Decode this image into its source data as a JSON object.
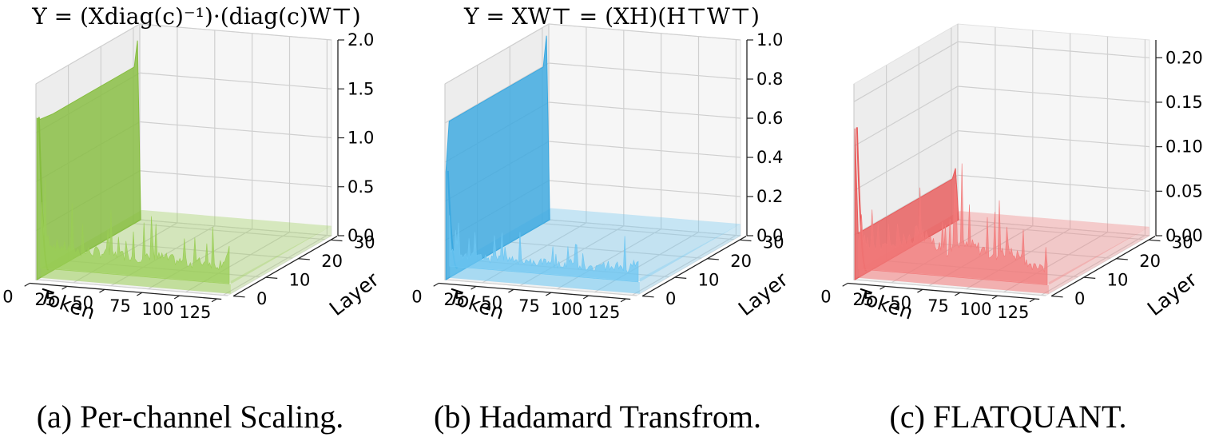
{
  "figure": {
    "panels": [
      {
        "formula": "Y = (Xdiag(c)⁻¹)·(diag(c)W⊤)",
        "caption": "(a) Per-channel Scaling.",
        "color": "#9acd55",
        "color_dark": "#86bd3f"
      },
      {
        "formula": "Y = XW⊤ = (XH)(H⊤W⊤)",
        "caption": "(b) Hadamard Transfrom.",
        "color": "#6cc6f2",
        "color_dark": "#3aa8e0"
      },
      {
        "formula": "",
        "caption": "(c) FLATQUANT.",
        "color": "#f27a7a",
        "color_dark": "#e85b5b"
      }
    ]
  },
  "chart_data": [
    {
      "type": "area",
      "title": "(a) Per-channel Scaling.",
      "xlabel": "Token",
      "ylabel": "Layer",
      "zlabel": "",
      "x_ticks": [
        "0",
        "25",
        "50",
        "75",
        "100",
        "125"
      ],
      "y_ticks": [
        "0",
        "10",
        "20",
        "30"
      ],
      "z_ticks": [
        "0.0",
        "0.5",
        "1.0",
        "1.5",
        "2.0"
      ],
      "xlim": [
        0,
        128
      ],
      "ylim": [
        0,
        32
      ],
      "zlim": [
        0,
        2.0
      ],
      "grid": true,
      "series": [
        {
          "description_profile": "first token, per-layer magnitude",
          "x": 0,
          "layers": [
            0,
            1,
            5,
            10,
            15,
            20,
            25,
            30,
            31
          ],
          "values": [
            1.65,
            1.62,
            1.6,
            1.6,
            1.6,
            1.6,
            1.6,
            1.6,
            1.85
          ]
        },
        {
          "description_profile": "tokens 1-127 at layer 0",
          "x": [
            1,
            10,
            20,
            30,
            40,
            50,
            60,
            70,
            80,
            90,
            100,
            110,
            120,
            127
          ],
          "values": [
            0.5,
            0.38,
            0.35,
            0.33,
            0.34,
            0.32,
            0.33,
            0.31,
            0.34,
            0.32,
            0.3,
            0.33,
            0.31,
            0.45
          ]
        },
        {
          "description_profile": "tokens 1-127 at layers 1-31",
          "value": 0.1
        }
      ]
    },
    {
      "type": "area",
      "title": "(b) Hadamard Transfrom.",
      "xlabel": "Token",
      "ylabel": "Layer",
      "zlabel": "",
      "x_ticks": [
        "0",
        "25",
        "50",
        "75",
        "100",
        "125"
      ],
      "y_ticks": [
        "0",
        "10",
        "20",
        "30"
      ],
      "z_ticks": [
        "0.0",
        "0.2",
        "0.4",
        "0.6",
        "0.8",
        "1.0"
      ],
      "xlim": [
        0,
        128
      ],
      "ylim": [
        0,
        32
      ],
      "zlim": [
        0,
        1.0
      ],
      "grid": true,
      "series": [
        {
          "description_profile": "first token, per-layer magnitude",
          "x": 0,
          "layers": [
            0,
            1,
            5,
            10,
            15,
            20,
            25,
            30,
            31
          ],
          "values": [
            0.55,
            0.8,
            0.8,
            0.8,
            0.8,
            0.8,
            0.8,
            0.8,
            0.95
          ]
        },
        {
          "description_profile": "tokens 1-127 at layer 0",
          "x": [
            1,
            10,
            20,
            30,
            40,
            50,
            60,
            70,
            80,
            90,
            100,
            110,
            120,
            127
          ],
          "values": [
            0.18,
            0.14,
            0.13,
            0.12,
            0.13,
            0.12,
            0.13,
            0.12,
            0.14,
            0.12,
            0.13,
            0.15,
            0.12,
            0.18
          ]
        },
        {
          "description_profile": "tokens 1-127 at layers 1-31",
          "value": 0.06
        }
      ]
    },
    {
      "type": "area",
      "title": "(c) FLATQUANT.",
      "xlabel": "Token",
      "ylabel": "Layer",
      "zlabel": "",
      "x_ticks": [
        "0",
        "25",
        "50",
        "75",
        "100",
        "125"
      ],
      "y_ticks": [
        "0",
        "10",
        "20",
        "30"
      ],
      "z_ticks": [
        "0.00",
        "0.05",
        "0.10",
        "0.15",
        "0.20"
      ],
      "xlim": [
        0,
        128
      ],
      "ylim": [
        0,
        32
      ],
      "zlim": [
        0,
        0.22
      ],
      "grid": true,
      "series": [
        {
          "description_profile": "first token, per-layer magnitude",
          "x": 0,
          "layers": [
            0,
            1,
            5,
            10,
            15,
            20,
            25,
            30,
            31
          ],
          "values": [
            0.17,
            0.05,
            0.05,
            0.05,
            0.05,
            0.05,
            0.05,
            0.05,
            0.06
          ]
        },
        {
          "description_profile": "tokens 1-127 at layer 0",
          "x": [
            1,
            10,
            20,
            30,
            40,
            50,
            60,
            70,
            80,
            90,
            100,
            110,
            120,
            127
          ],
          "values": [
            0.05,
            0.04,
            0.04,
            0.05,
            0.06,
            0.05,
            0.04,
            0.06,
            0.05,
            0.04,
            0.05,
            0.04,
            0.03,
            0.03
          ]
        },
        {
          "description_profile": "tokens 1-127 at layers 1-31",
          "value": 0.01
        }
      ]
    }
  ]
}
